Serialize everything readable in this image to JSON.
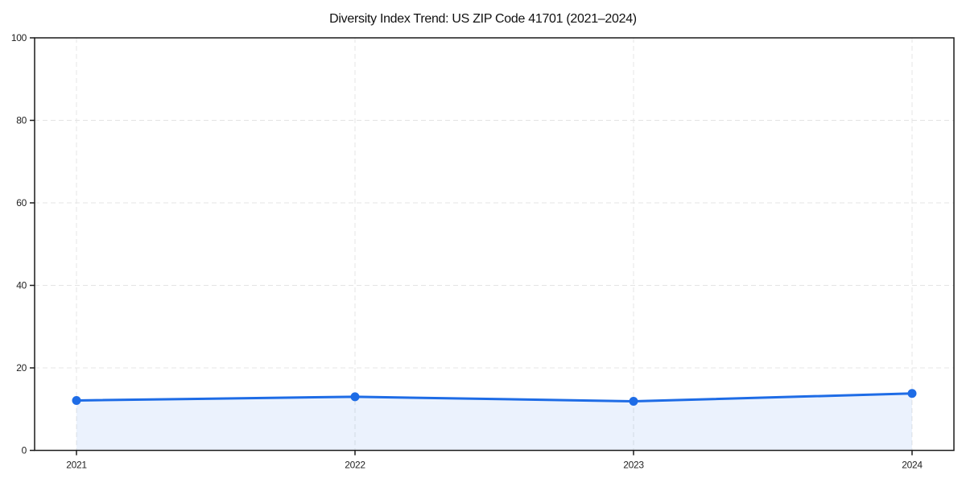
{
  "chart_data": {
    "type": "area",
    "title": "Diversity Index Trend: US ZIP Code 41701 (2021–2024)",
    "series_name": "Diversity Index",
    "categories": [
      "2021",
      "2022",
      "2023",
      "2024"
    ],
    "x": [
      2021,
      2022,
      2023,
      2024
    ],
    "values": [
      12.1,
      13.0,
      11.9,
      13.8
    ],
    "xlabel": "",
    "ylabel": "",
    "ylim": [
      0,
      100
    ],
    "yticks": [
      0,
      20,
      40,
      60,
      80,
      100
    ],
    "grid": "dashed",
    "legend_position": "none",
    "marker": "circle",
    "colors": {
      "line": "#1e6ce6",
      "marker": "#1e6ce6",
      "fill": "rgba(30, 108, 230, 0.09)",
      "grid": "#e4e4e4",
      "spine": "#1a1a1a",
      "text": "#222222",
      "title": "#111111",
      "background": "#ffffff"
    }
  }
}
